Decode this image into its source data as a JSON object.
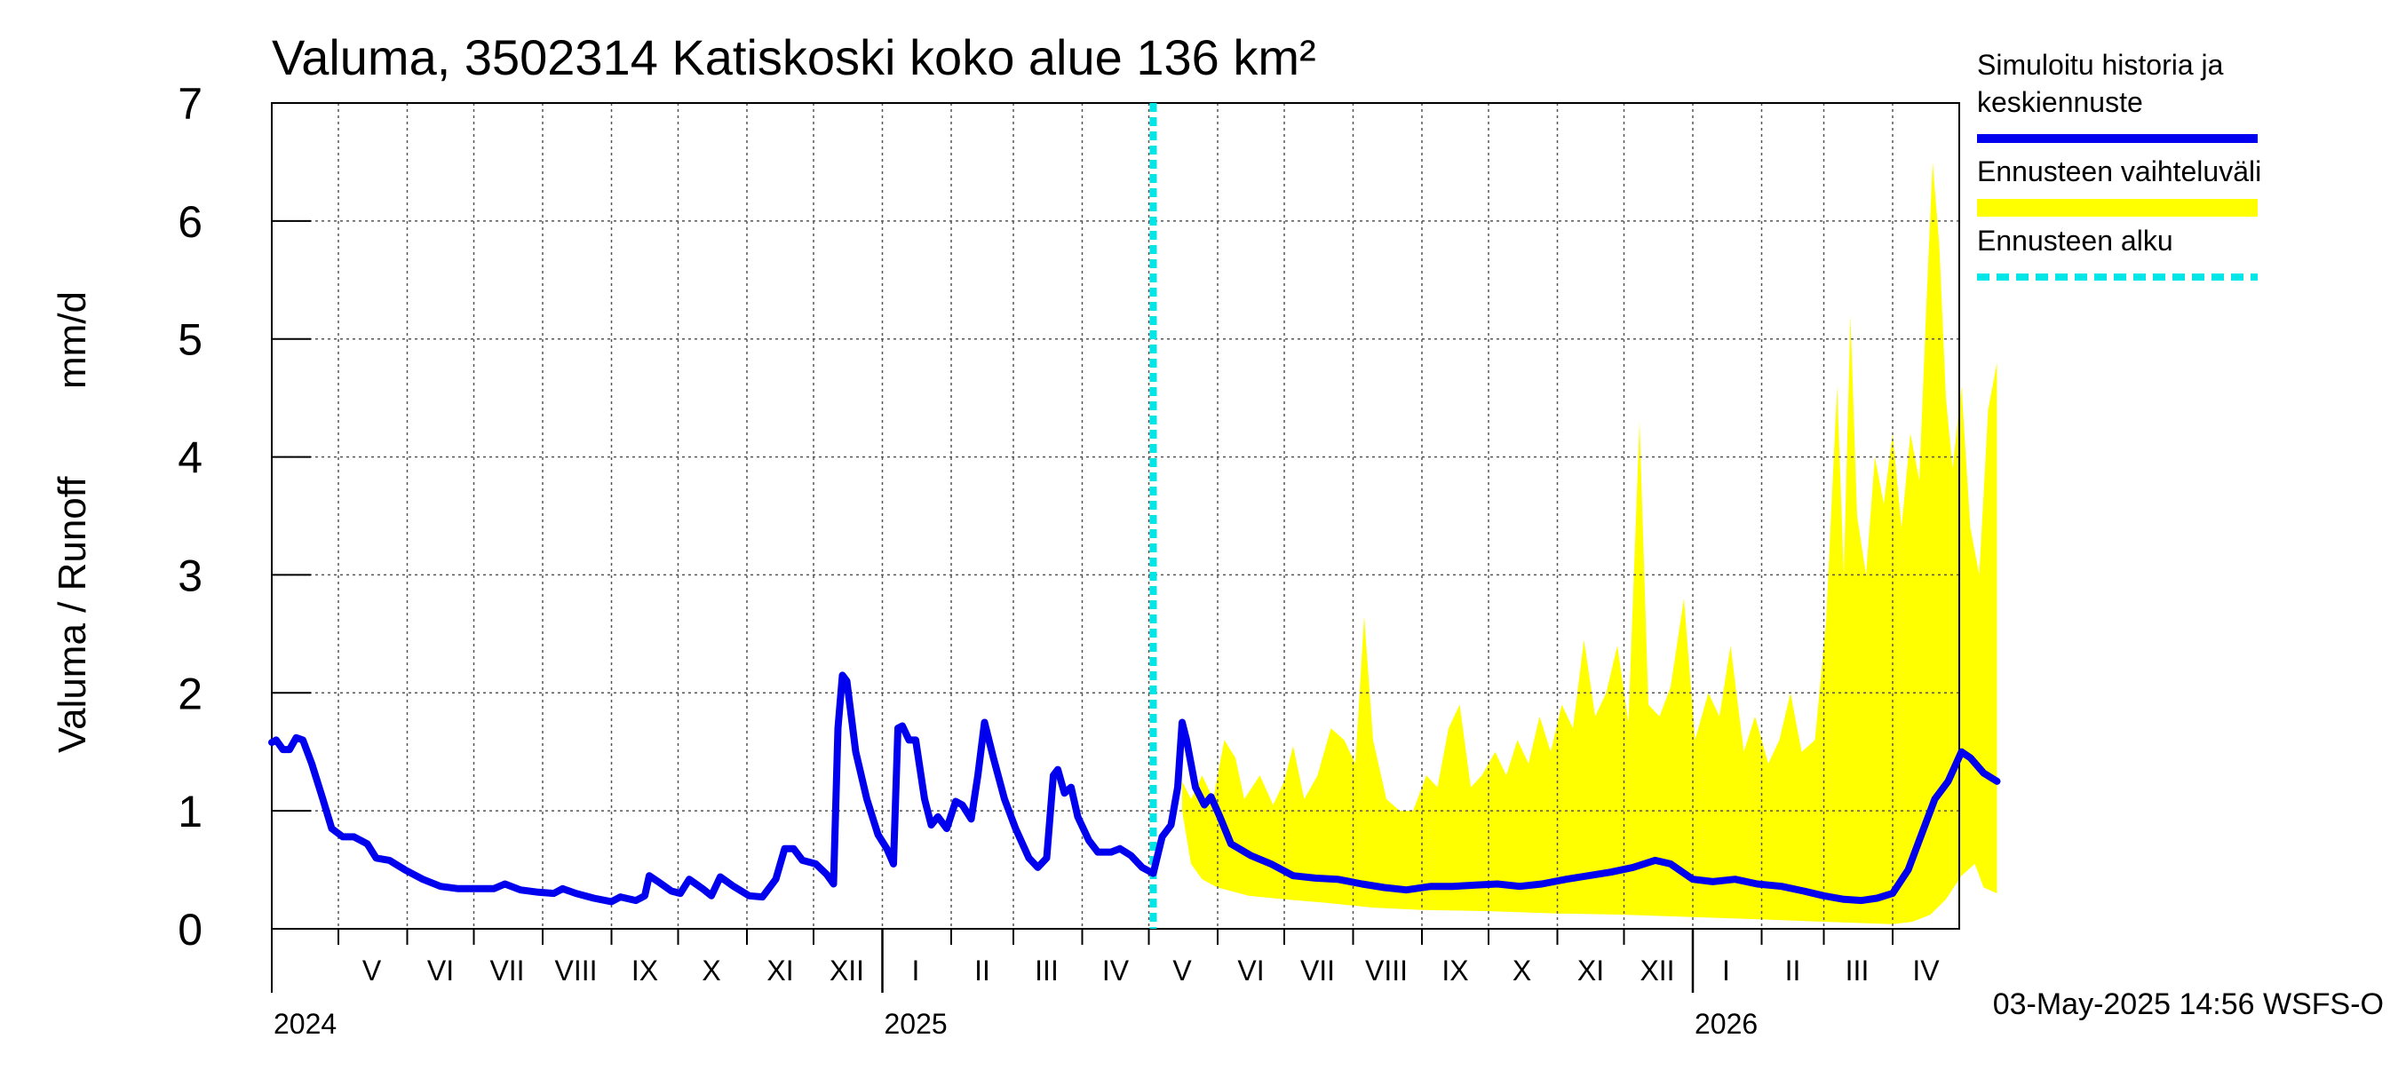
{
  "chart_data": {
    "type": "line",
    "title": "Valuma, 3502314 Katiskoski koko alue 136 km²",
    "ylabel_left": "Valuma / Runoff",
    "ylabel_right": "mm/d",
    "ylim": [
      0,
      7
    ],
    "yticks": [
      0,
      1,
      2,
      3,
      4,
      5,
      6,
      7
    ],
    "xlim": [
      "2024-04-01",
      "2026-05-01"
    ],
    "grid": true,
    "legend_position": "right",
    "forecast_start": "2025-05-03",
    "timestamp": "03-May-2025 14:56 WSFS-O",
    "month_labels": [
      {
        "label": "V",
        "date": "2024-05-16"
      },
      {
        "label": "VI",
        "date": "2024-06-16"
      },
      {
        "label": "VII",
        "date": "2024-07-16"
      },
      {
        "label": "VIII",
        "date": "2024-08-16"
      },
      {
        "label": "IX",
        "date": "2024-09-16"
      },
      {
        "label": "X",
        "date": "2024-10-16"
      },
      {
        "label": "XI",
        "date": "2024-11-16"
      },
      {
        "label": "XII",
        "date": "2024-12-16"
      },
      {
        "label": "I",
        "date": "2025-01-16"
      },
      {
        "label": "II",
        "date": "2025-02-15"
      },
      {
        "label": "III",
        "date": "2025-03-16"
      },
      {
        "label": "IV",
        "date": "2025-04-16"
      },
      {
        "label": "V",
        "date": "2025-05-16"
      },
      {
        "label": "VI",
        "date": "2025-06-16"
      },
      {
        "label": "VII",
        "date": "2025-07-16"
      },
      {
        "label": "VIII",
        "date": "2025-08-16"
      },
      {
        "label": "IX",
        "date": "2025-09-16"
      },
      {
        "label": "X",
        "date": "2025-10-16"
      },
      {
        "label": "XI",
        "date": "2025-11-16"
      },
      {
        "label": "XII",
        "date": "2025-12-16"
      },
      {
        "label": "I",
        "date": "2026-01-16"
      },
      {
        "label": "II",
        "date": "2026-02-15"
      },
      {
        "label": "III",
        "date": "2026-03-16"
      },
      {
        "label": "IV",
        "date": "2026-04-16"
      }
    ],
    "month_boundaries": [
      "2024-05-01",
      "2024-06-01",
      "2024-07-01",
      "2024-08-01",
      "2024-09-01",
      "2024-10-01",
      "2024-11-01",
      "2024-12-01",
      "2025-01-01",
      "2025-02-01",
      "2025-03-01",
      "2025-04-01",
      "2025-05-01",
      "2025-06-01",
      "2025-07-01",
      "2025-08-01",
      "2025-09-01",
      "2025-10-01",
      "2025-11-01",
      "2025-12-01",
      "2026-01-01",
      "2026-02-01",
      "2026-03-01",
      "2026-04-01"
    ],
    "year_boundaries": [
      "2025-01-01",
      "2026-01-01"
    ],
    "year_labels": [
      {
        "label": "2024",
        "date": "2024-04-01"
      },
      {
        "label": "2025",
        "date": "2025-01-01"
      },
      {
        "label": "2026",
        "date": "2026-01-01"
      }
    ],
    "legend": [
      {
        "label_lines": [
          "Simuloitu historia ja",
          "keskiennuste"
        ],
        "color": "#0000ee",
        "style": "solid"
      },
      {
        "label_lines": [
          "Ennusteen vaihteluväli"
        ],
        "color": "#ffff00",
        "style": "band"
      },
      {
        "label_lines": [
          "Ennusteen alku"
        ],
        "color": "#00e5e5",
        "style": "dashed"
      }
    ],
    "series": [
      {
        "name": "Simuloitu historia ja keskiennuste",
        "color": "#0000ee",
        "points": [
          [
            "2024-04-01",
            1.58
          ],
          [
            "2024-04-03",
            1.6
          ],
          [
            "2024-04-06",
            1.52
          ],
          [
            "2024-04-09",
            1.52
          ],
          [
            "2024-04-12",
            1.62
          ],
          [
            "2024-04-15",
            1.6
          ],
          [
            "2024-04-19",
            1.4
          ],
          [
            "2024-04-24",
            1.1
          ],
          [
            "2024-04-28",
            0.85
          ],
          [
            "2024-05-03",
            0.78
          ],
          [
            "2024-05-08",
            0.78
          ],
          [
            "2024-05-14",
            0.72
          ],
          [
            "2024-05-18",
            0.6
          ],
          [
            "2024-05-24",
            0.58
          ],
          [
            "2024-05-31",
            0.5
          ],
          [
            "2024-06-08",
            0.42
          ],
          [
            "2024-06-16",
            0.36
          ],
          [
            "2024-06-24",
            0.34
          ],
          [
            "2024-07-02",
            0.34
          ],
          [
            "2024-07-10",
            0.34
          ],
          [
            "2024-07-15",
            0.38
          ],
          [
            "2024-07-22",
            0.33
          ],
          [
            "2024-07-30",
            0.31
          ],
          [
            "2024-08-06",
            0.3
          ],
          [
            "2024-08-10",
            0.34
          ],
          [
            "2024-08-16",
            0.3
          ],
          [
            "2024-08-24",
            0.26
          ],
          [
            "2024-09-01",
            0.23
          ],
          [
            "2024-09-05",
            0.27
          ],
          [
            "2024-09-12",
            0.24
          ],
          [
            "2024-09-16",
            0.28
          ],
          [
            "2024-09-18",
            0.45
          ],
          [
            "2024-09-22",
            0.4
          ],
          [
            "2024-09-28",
            0.32
          ],
          [
            "2024-10-02",
            0.3
          ],
          [
            "2024-10-06",
            0.42
          ],
          [
            "2024-10-12",
            0.34
          ],
          [
            "2024-10-16",
            0.28
          ],
          [
            "2024-10-20",
            0.44
          ],
          [
            "2024-10-26",
            0.36
          ],
          [
            "2024-11-02",
            0.28
          ],
          [
            "2024-11-08",
            0.27
          ],
          [
            "2024-11-14",
            0.42
          ],
          [
            "2024-11-18",
            0.68
          ],
          [
            "2024-11-22",
            0.68
          ],
          [
            "2024-11-26",
            0.58
          ],
          [
            "2024-12-02",
            0.55
          ],
          [
            "2024-12-07",
            0.46
          ],
          [
            "2024-12-10",
            0.38
          ],
          [
            "2024-12-12",
            1.7
          ],
          [
            "2024-12-14",
            2.15
          ],
          [
            "2024-12-16",
            2.1
          ],
          [
            "2024-12-20",
            1.5
          ],
          [
            "2024-12-25",
            1.1
          ],
          [
            "2024-12-30",
            0.8
          ],
          [
            "2025-01-03",
            0.68
          ],
          [
            "2025-01-06",
            0.55
          ],
          [
            "2025-01-08",
            1.7
          ],
          [
            "2025-01-10",
            1.72
          ],
          [
            "2025-01-13",
            1.6
          ],
          [
            "2025-01-16",
            1.6
          ],
          [
            "2025-01-20",
            1.1
          ],
          [
            "2025-01-23",
            0.88
          ],
          [
            "2025-01-26",
            0.95
          ],
          [
            "2025-01-30",
            0.85
          ],
          [
            "2025-02-03",
            1.08
          ],
          [
            "2025-02-06",
            1.05
          ],
          [
            "2025-02-10",
            0.93
          ],
          [
            "2025-02-13",
            1.3
          ],
          [
            "2025-02-16",
            1.75
          ],
          [
            "2025-02-20",
            1.45
          ],
          [
            "2025-02-25",
            1.1
          ],
          [
            "2025-03-02",
            0.85
          ],
          [
            "2025-03-08",
            0.6
          ],
          [
            "2025-03-12",
            0.52
          ],
          [
            "2025-03-16",
            0.6
          ],
          [
            "2025-03-19",
            1.3
          ],
          [
            "2025-03-21",
            1.35
          ],
          [
            "2025-03-24",
            1.15
          ],
          [
            "2025-03-27",
            1.2
          ],
          [
            "2025-03-30",
            0.95
          ],
          [
            "2025-04-04",
            0.75
          ],
          [
            "2025-04-08",
            0.65
          ],
          [
            "2025-04-14",
            0.65
          ],
          [
            "2025-04-18",
            0.68
          ],
          [
            "2025-04-23",
            0.62
          ],
          [
            "2025-04-28",
            0.52
          ],
          [
            "2025-05-03",
            0.47
          ],
          [
            "2025-05-07",
            0.78
          ],
          [
            "2025-05-11",
            0.88
          ],
          [
            "2025-05-14",
            1.2
          ],
          [
            "2025-05-16",
            1.75
          ],
          [
            "2025-05-18",
            1.6
          ],
          [
            "2025-05-22",
            1.2
          ],
          [
            "2025-05-26",
            1.05
          ],
          [
            "2025-05-29",
            1.12
          ],
          [
            "2025-06-02",
            0.95
          ],
          [
            "2025-06-07",
            0.72
          ],
          [
            "2025-06-16",
            0.62
          ],
          [
            "2025-06-25",
            0.55
          ],
          [
            "2025-07-05",
            0.45
          ],
          [
            "2025-07-15",
            0.43
          ],
          [
            "2025-07-25",
            0.42
          ],
          [
            "2025-08-05",
            0.38
          ],
          [
            "2025-08-15",
            0.35
          ],
          [
            "2025-08-25",
            0.33
          ],
          [
            "2025-09-05",
            0.36
          ],
          [
            "2025-09-15",
            0.36
          ],
          [
            "2025-09-25",
            0.37
          ],
          [
            "2025-10-05",
            0.38
          ],
          [
            "2025-10-15",
            0.36
          ],
          [
            "2025-10-25",
            0.38
          ],
          [
            "2025-11-05",
            0.42
          ],
          [
            "2025-11-15",
            0.45
          ],
          [
            "2025-11-25",
            0.48
          ],
          [
            "2025-12-05",
            0.52
          ],
          [
            "2025-12-15",
            0.58
          ],
          [
            "2025-12-22",
            0.55
          ],
          [
            "2026-01-01",
            0.42
          ],
          [
            "2026-01-10",
            0.4
          ],
          [
            "2026-01-20",
            0.42
          ],
          [
            "2026-01-30",
            0.38
          ],
          [
            "2026-02-10",
            0.36
          ],
          [
            "2026-02-20",
            0.32
          ],
          [
            "2026-03-01",
            0.28
          ],
          [
            "2026-03-10",
            0.25
          ],
          [
            "2026-03-18",
            0.24
          ],
          [
            "2026-03-25",
            0.26
          ],
          [
            "2026-04-01",
            0.3
          ],
          [
            "2026-04-08",
            0.5
          ],
          [
            "2026-04-14",
            0.8
          ],
          [
            "2026-04-20",
            1.1
          ],
          [
            "2026-04-26",
            1.25
          ],
          [
            "2026-05-02",
            1.5
          ],
          [
            "2026-05-06",
            1.45
          ],
          [
            "2026-05-12",
            1.32
          ],
          [
            "2026-05-18",
            1.25
          ]
        ]
      }
    ],
    "band": {
      "name": "Ennusteen vaihteluväli",
      "color": "#ffff00",
      "upper": [
        [
          "2025-05-16",
          1.25
        ],
        [
          "2025-05-20",
          1.1
        ],
        [
          "2025-05-25",
          1.3
        ],
        [
          "2025-05-30",
          1.1
        ],
        [
          "2025-06-04",
          1.6
        ],
        [
          "2025-06-09",
          1.45
        ],
        [
          "2025-06-13",
          1.1
        ],
        [
          "2025-06-20",
          1.3
        ],
        [
          "2025-06-26",
          1.05
        ],
        [
          "2025-07-01",
          1.25
        ],
        [
          "2025-07-05",
          1.55
        ],
        [
          "2025-07-10",
          1.1
        ],
        [
          "2025-07-16",
          1.3
        ],
        [
          "2025-07-22",
          1.7
        ],
        [
          "2025-07-28",
          1.6
        ],
        [
          "2025-08-02",
          1.4
        ],
        [
          "2025-08-06",
          2.65
        ],
        [
          "2025-08-10",
          1.6
        ],
        [
          "2025-08-16",
          1.1
        ],
        [
          "2025-08-22",
          1.0
        ],
        [
          "2025-08-28",
          1.0
        ],
        [
          "2025-09-03",
          1.3
        ],
        [
          "2025-09-08",
          1.2
        ],
        [
          "2025-09-13",
          1.7
        ],
        [
          "2025-09-18",
          1.9
        ],
        [
          "2025-09-23",
          1.2
        ],
        [
          "2025-09-28",
          1.3
        ],
        [
          "2025-10-04",
          1.5
        ],
        [
          "2025-10-09",
          1.3
        ],
        [
          "2025-10-14",
          1.6
        ],
        [
          "2025-10-19",
          1.4
        ],
        [
          "2025-10-24",
          1.8
        ],
        [
          "2025-10-29",
          1.5
        ],
        [
          "2025-11-03",
          1.9
        ],
        [
          "2025-11-08",
          1.7
        ],
        [
          "2025-11-13",
          2.45
        ],
        [
          "2025-11-18",
          1.8
        ],
        [
          "2025-11-23",
          2.0
        ],
        [
          "2025-11-28",
          2.4
        ],
        [
          "2025-12-03",
          1.75
        ],
        [
          "2025-12-08",
          4.3
        ],
        [
          "2025-12-12",
          1.9
        ],
        [
          "2025-12-17",
          1.8
        ],
        [
          "2025-12-22",
          2.05
        ],
        [
          "2025-12-28",
          2.8
        ],
        [
          "2026-01-02",
          1.6
        ],
        [
          "2026-01-08",
          2.0
        ],
        [
          "2026-01-13",
          1.8
        ],
        [
          "2026-01-18",
          2.4
        ],
        [
          "2026-01-24",
          1.5
        ],
        [
          "2026-01-29",
          1.8
        ],
        [
          "2026-02-04",
          1.4
        ],
        [
          "2026-02-09",
          1.6
        ],
        [
          "2026-02-14",
          2.0
        ],
        [
          "2026-02-19",
          1.5
        ],
        [
          "2026-02-25",
          1.6
        ],
        [
          "2026-03-02",
          2.6
        ],
        [
          "2026-03-07",
          4.6
        ],
        [
          "2026-03-10",
          3.0
        ],
        [
          "2026-03-13",
          5.2
        ],
        [
          "2026-03-16",
          3.5
        ],
        [
          "2026-03-20",
          3.0
        ],
        [
          "2026-03-24",
          4.0
        ],
        [
          "2026-03-28",
          3.6
        ],
        [
          "2026-04-01",
          4.2
        ],
        [
          "2026-04-05",
          3.4
        ],
        [
          "2026-04-09",
          4.2
        ],
        [
          "2026-04-13",
          3.8
        ],
        [
          "2026-04-16",
          5.2
        ],
        [
          "2026-04-19",
          6.5
        ],
        [
          "2026-04-22",
          5.8
        ],
        [
          "2026-04-25",
          4.5
        ],
        [
          "2026-04-28",
          3.9
        ],
        [
          "2026-05-02",
          4.6
        ],
        [
          "2026-05-06",
          3.4
        ],
        [
          "2026-05-10",
          3.0
        ],
        [
          "2026-05-14",
          4.4
        ],
        [
          "2026-05-18",
          4.8
        ]
      ],
      "lower": [
        [
          "2025-05-16",
          1.0
        ],
        [
          "2025-05-20",
          0.55
        ],
        [
          "2025-05-25",
          0.42
        ],
        [
          "2025-06-01",
          0.35
        ],
        [
          "2025-06-15",
          0.28
        ],
        [
          "2025-07-01",
          0.25
        ],
        [
          "2025-07-20",
          0.22
        ],
        [
          "2025-08-10",
          0.18
        ],
        [
          "2025-09-01",
          0.16
        ],
        [
          "2025-10-01",
          0.15
        ],
        [
          "2025-11-01",
          0.13
        ],
        [
          "2025-12-01",
          0.12
        ],
        [
          "2026-01-01",
          0.1
        ],
        [
          "2026-02-01",
          0.08
        ],
        [
          "2026-03-01",
          0.06
        ],
        [
          "2026-04-01",
          0.04
        ],
        [
          "2026-04-10",
          0.06
        ],
        [
          "2026-04-18",
          0.12
        ],
        [
          "2026-04-25",
          0.25
        ],
        [
          "2026-05-02",
          0.45
        ],
        [
          "2026-05-08",
          0.55
        ],
        [
          "2026-05-12",
          0.35
        ],
        [
          "2026-05-18",
          0.3
        ]
      ]
    }
  }
}
